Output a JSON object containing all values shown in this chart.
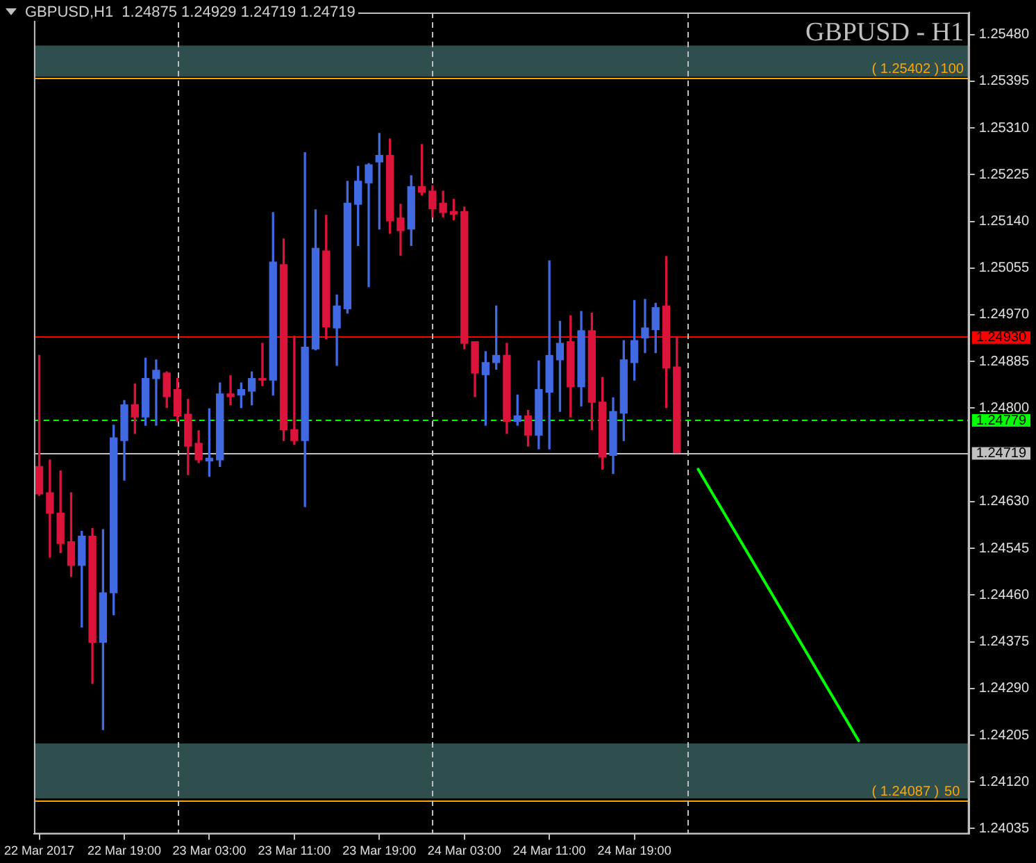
{
  "chart_data": {
    "type": "candlestick",
    "title": "GBPUSD,H1  1.24875 1.24929 1.24719 1.24719",
    "subtitle": "GBPUSD - H1",
    "x": [
      "2017-03-22T11:00",
      "2017-03-22T12:00",
      "2017-03-22T13:00",
      "2017-03-22T14:00",
      "2017-03-22T15:00",
      "2017-03-22T16:00",
      "2017-03-22T17:00",
      "2017-03-22T18:00",
      "2017-03-22T19:00",
      "2017-03-22T20:00",
      "2017-03-22T21:00",
      "2017-03-22T22:00",
      "2017-03-22T23:00",
      "2017-03-23T00:00",
      "2017-03-23T01:00",
      "2017-03-23T02:00",
      "2017-03-23T03:00",
      "2017-03-23T04:00",
      "2017-03-23T05:00",
      "2017-03-23T06:00",
      "2017-03-23T07:00",
      "2017-03-23T08:00",
      "2017-03-23T09:00",
      "2017-03-23T10:00",
      "2017-03-23T11:00",
      "2017-03-23T12:00",
      "2017-03-23T13:00",
      "2017-03-23T14:00",
      "2017-03-23T15:00",
      "2017-03-23T16:00",
      "2017-03-23T17:00",
      "2017-03-23T18:00",
      "2017-03-23T19:00",
      "2017-03-23T20:00",
      "2017-03-23T21:00",
      "2017-03-23T22:00",
      "2017-03-23T23:00",
      "2017-03-24T00:00",
      "2017-03-24T01:00",
      "2017-03-24T02:00",
      "2017-03-24T03:00",
      "2017-03-24T04:00",
      "2017-03-24T05:00",
      "2017-03-24T06:00",
      "2017-03-24T07:00",
      "2017-03-24T08:00",
      "2017-03-24T09:00",
      "2017-03-24T10:00",
      "2017-03-24T11:00",
      "2017-03-24T12:00",
      "2017-03-24T13:00",
      "2017-03-24T14:00",
      "2017-03-24T15:00",
      "2017-03-24T16:00",
      "2017-03-24T17:00",
      "2017-03-24T18:00",
      "2017-03-24T19:00",
      "2017-03-24T20:00",
      "2017-03-24T21:00",
      "2017-03-24T22:00",
      "2017-03-24T23:00"
    ],
    "ohlc": [
      [
        1.24694,
        1.24896,
        1.24641,
        1.24644
      ],
      [
        1.24646,
        1.24706,
        1.24529,
        1.24609
      ],
      [
        1.24609,
        1.24686,
        1.24537,
        1.24554
      ],
      [
        1.24557,
        1.24646,
        1.24494,
        1.24514
      ],
      [
        1.24514,
        1.24576,
        1.24402,
        1.24567
      ],
      [
        1.24567,
        1.24581,
        1.24299,
        1.24374
      ],
      [
        1.24374,
        1.24579,
        1.24215,
        1.24464
      ],
      [
        1.24464,
        1.24769,
        1.24424,
        1.24746
      ],
      [
        1.24741,
        1.24814,
        1.24669,
        1.24806
      ],
      [
        1.24806,
        1.24844,
        1.24754,
        1.24784
      ],
      [
        1.24784,
        1.24891,
        1.24769,
        1.24854
      ],
      [
        1.24854,
        1.24888,
        1.24769,
        1.24869
      ],
      [
        1.24864,
        1.24866,
        1.24801,
        1.24821
      ],
      [
        1.24834,
        1.24854,
        1.24776,
        1.24786
      ],
      [
        1.24789,
        1.24816,
        1.24679,
        1.24731
      ],
      [
        1.24736,
        1.24759,
        1.24701,
        1.24706
      ],
      [
        1.24704,
        1.24799,
        1.24676,
        1.24709
      ],
      [
        1.24706,
        1.24846,
        1.24694,
        1.24826
      ],
      [
        1.24826,
        1.24859,
        1.24806,
        1.24821
      ],
      [
        1.24824,
        1.24846,
        1.24801,
        1.24834
      ],
      [
        1.24831,
        1.24866,
        1.24806,
        1.24854
      ],
      [
        1.24854,
        1.24918,
        1.24841,
        1.24851
      ],
      [
        1.24851,
        1.25156,
        1.24824,
        1.25066
      ],
      [
        1.25061,
        1.25108,
        1.24741,
        1.24761
      ],
      [
        1.24761,
        1.24931,
        1.24734,
        1.24741
      ],
      [
        1.24741,
        1.25265,
        1.24621,
        1.24911
      ],
      [
        1.24908,
        1.25161,
        1.24906,
        1.25091
      ],
      [
        1.25086,
        1.25151,
        1.24926,
        1.24948
      ],
      [
        1.24946,
        1.25006,
        1.24878,
        1.24986
      ],
      [
        1.24981,
        1.25213,
        1.24973,
        1.25173
      ],
      [
        1.25171,
        1.2524,
        1.25096,
        1.25213
      ],
      [
        1.2521,
        1.25245,
        1.25021,
        1.25243
      ],
      [
        1.25248,
        1.253,
        1.25126,
        1.2526
      ],
      [
        1.2526,
        1.2529,
        1.25118,
        1.25141
      ],
      [
        1.25146,
        1.25171,
        1.25078,
        1.25123
      ],
      [
        1.25126,
        1.25223,
        1.25096,
        1.25203
      ],
      [
        1.25203,
        1.2528,
        1.25188,
        1.25193
      ],
      [
        1.25195,
        1.25205,
        1.25148,
        1.25163
      ],
      [
        1.25173,
        1.25195,
        1.25148,
        1.25156
      ],
      [
        1.25158,
        1.2518,
        1.25143,
        1.25153
      ],
      [
        1.25158,
        1.25166,
        1.24908,
        1.24918
      ],
      [
        1.24921,
        1.24921,
        1.24821,
        1.24864
      ],
      [
        1.24861,
        1.24903,
        1.24769,
        1.24883
      ],
      [
        1.24883,
        1.24986,
        1.24871,
        1.24896
      ],
      [
        1.24896,
        1.24918,
        1.24754,
        1.24776
      ],
      [
        1.24776,
        1.24824,
        1.24769,
        1.24786
      ],
      [
        1.24786,
        1.24796,
        1.24731,
        1.24751
      ],
      [
        1.24751,
        1.24886,
        1.24726,
        1.24834
      ],
      [
        1.24829,
        1.25068,
        1.24726,
        1.24896
      ],
      [
        1.24888,
        1.24958,
        1.24794,
        1.24918
      ],
      [
        1.24921,
        1.24968,
        1.24784,
        1.24839
      ],
      [
        1.24839,
        1.24976,
        1.24804,
        1.24941
      ],
      [
        1.24941,
        1.24973,
        1.24761,
        1.24811
      ],
      [
        1.24811,
        1.24856,
        1.24689,
        1.24711
      ],
      [
        1.24714,
        1.24819,
        1.24681,
        1.24794
      ],
      [
        1.24791,
        1.24923,
        1.24741,
        1.24888
      ],
      [
        1.24883,
        1.24996,
        1.24851,
        1.24923
      ],
      [
        1.24928,
        1.24998,
        1.24901,
        1.24946
      ],
      [
        1.24943,
        1.24991,
        1.24901,
        1.24983
      ],
      [
        1.24986,
        1.25076,
        1.24801,
        1.24873
      ],
      [
        1.24875,
        1.24929,
        1.24719,
        1.24719
      ]
    ],
    "colors": [
      "#dc143c",
      "#dc143c",
      "#dc143c",
      "#dc143c",
      "#4169e1",
      "#dc143c",
      "#4169e1",
      "#4169e1",
      "#4169e1",
      "#dc143c",
      "#4169e1",
      "#4169e1",
      "#dc143c",
      "#dc143c",
      "#dc143c",
      "#dc143c",
      "#4169e1",
      "#4169e1",
      "#dc143c",
      "#4169e1",
      "#4169e1",
      "#dc143c",
      "#4169e1",
      "#dc143c",
      "#dc143c",
      "#4169e1",
      "#4169e1",
      "#dc143c",
      "#4169e1",
      "#4169e1",
      "#4169e1",
      "#4169e1",
      "#4169e1",
      "#dc143c",
      "#dc143c",
      "#4169e1",
      "#dc143c",
      "#dc143c",
      "#dc143c",
      "#dc143c",
      "#dc143c",
      "#dc143c",
      "#4169e1",
      "#4169e1",
      "#dc143c",
      "#4169e1",
      "#dc143c",
      "#4169e1",
      "#4169e1",
      "#4169e1",
      "#dc143c",
      "#4169e1",
      "#dc143c",
      "#dc143c",
      "#4169e1",
      "#4169e1",
      "#4169e1",
      "#4169e1",
      "#4169e1",
      "#dc143c",
      "#dc143c"
    ],
    "series": [
      {
        "type": "line",
        "color": "#00ff00",
        "x": [
          "2017-03-25T01:00",
          "2017-03-25T16:06"
        ],
        "values": [
          1.24689,
          1.24195
        ]
      }
    ],
    "marker": "none",
    "xlim": [
      "2017-03-22T10:30",
      "2017-03-26T02:30"
    ],
    "xticks": [
      {
        "value": "2017-03-22T11:00",
        "label": "22 Mar 2017"
      },
      {
        "value": "2017-03-22T19:00",
        "label": "22 Mar 19:00"
      },
      {
        "value": "2017-03-23T03:00",
        "label": "23 Mar 03:00"
      },
      {
        "value": "2017-03-23T11:00",
        "label": "23 Mar 11:00"
      },
      {
        "value": "2017-03-23T19:00",
        "label": "23 Mar 19:00"
      },
      {
        "value": "2017-03-24T03:00",
        "label": "24 Mar 03:00"
      },
      {
        "value": "2017-03-24T11:00",
        "label": "24 Mar 11:00"
      },
      {
        "value": "2017-03-24T19:00",
        "label": "24 Mar 19:00"
      }
    ],
    "ylim": [
      1.24025,
      1.2552
    ],
    "yticks": [
      1.24035,
      {
        "value": 1.2412,
        "label": "1.24120"
      },
      1.24205,
      {
        "value": 1.2429,
        "label": "1.24290"
      },
      1.24375,
      {
        "value": 1.2446,
        "label": "1.24460"
      },
      1.24545,
      {
        "value": 1.2463,
        "label": "1.24630"
      },
      {
        "value": 1.248,
        "label": "1.24800"
      },
      1.24885,
      {
        "value": 1.2497,
        "label": "1.24970"
      },
      1.25055,
      {
        "value": 1.2514,
        "label": "1.25140"
      },
      1.25225,
      {
        "value": 1.2531,
        "label": "1.25310"
      },
      1.25395,
      {
        "value": 1.2548,
        "label": "1.25480"
      }
    ],
    "grid": false,
    "legend": false,
    "bands": [
      {
        "axis": "y",
        "from": 1.25403,
        "to": 1.2546,
        "color": "#2f4f4f"
      },
      {
        "axis": "y",
        "from": 1.2409,
        "to": 1.2419,
        "color": "#2f4f4f"
      }
    ],
    "ref_lines": [
      {
        "axis": "y",
        "value": 1.25402,
        "color": "#ffa500"
      },
      {
        "axis": "y",
        "value": 1.24087,
        "color": "#ffa500"
      },
      {
        "axis": "y",
        "value": 1.2493,
        "label": "1.24930",
        "color": "#ff0000"
      },
      {
        "axis": "y",
        "value": 1.24779,
        "label": "1.24779",
        "color": "#00ff00",
        "line_style": "dashed"
      },
      {
        "axis": "y",
        "value": 1.24719,
        "label": "1.24719",
        "color": "#c0c0c0"
      },
      {
        "axis": "x",
        "value": "2017-03-23",
        "color": "#c0c0c0",
        "line_style": "dashed"
      },
      {
        "axis": "x",
        "value": "2017-03-24",
        "color": "#c0c0c0",
        "line_style": "dashed"
      },
      {
        "axis": "x",
        "value": "2017-03-25",
        "color": "#c0c0c0",
        "line_style": "dashed"
      }
    ],
    "annotations": [
      {
        "text": "( 1.25402 )",
        "x": "2017-03-25T20:30",
        "y": 1.25402
      },
      {
        "text": "100",
        "x": "2017-03-26T00:54",
        "y": 1.25402
      },
      {
        "text": "( 1.24087 )",
        "x": "2017-03-25T20:30",
        "y": 1.24087
      },
      {
        "text": "50",
        "x": "2017-03-26T00:54",
        "y": 1.24087
      }
    ]
  }
}
